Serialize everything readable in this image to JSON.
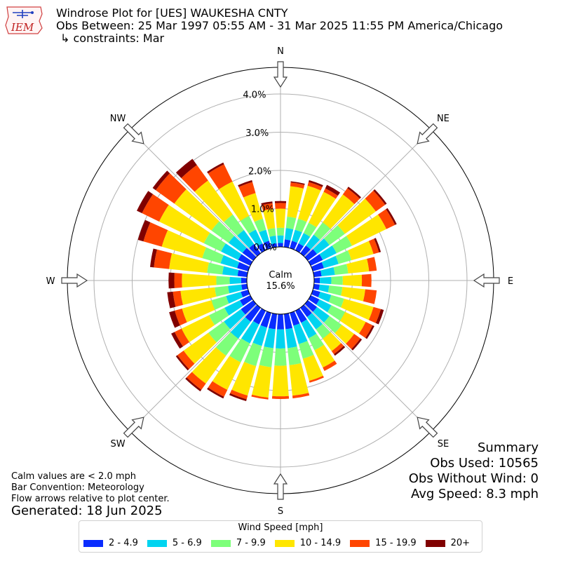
{
  "header": {
    "title": "Windrose Plot for [UES] WAUKESHA CNTY",
    "obs_between": "Obs Between: 25 Mar 1997 05:55 AM - 31 Mar 2025 11:55 PM America/Chicago",
    "constraints": "↳ constraints: Mar",
    "logo_text": "IEM"
  },
  "summary": {
    "heading": "Summary",
    "obs_used": "Obs Used: 10565",
    "obs_without_wind": "Obs Without Wind: 0",
    "avg_speed": "Avg Speed: 8.3 mph"
  },
  "notes": {
    "calm_note": "Calm values are < 2.0 mph",
    "bar_convention": "Bar Convention: Meteorology",
    "flow_arrows": "Flow arrows relative to plot center.",
    "generated": "Generated: 18 Jun 2025"
  },
  "legend": {
    "title": "Wind Speed [mph]"
  },
  "chart_data": {
    "type": "windrose",
    "calm_label": "Calm",
    "calm_percent_label": "15.6%",
    "calm_percent": 15.6,
    "radial_ticks": [
      0,
      1,
      2,
      3,
      4
    ],
    "radial_tick_labels": [
      "0.0%",
      "1.0%",
      "2.0%",
      "3.0%",
      "4.0%"
    ],
    "compass_labels": [
      "N",
      "NE",
      "E",
      "SE",
      "S",
      "SW",
      "W",
      "NW"
    ],
    "compass_angles": [
      0,
      45,
      90,
      135,
      180,
      225,
      270,
      315
    ],
    "bins": [
      {
        "label": "2 - 4.9",
        "color": "#0a2cff"
      },
      {
        "label": "5 - 6.9",
        "color": "#00d4f0"
      },
      {
        "label": "7 - 9.9",
        "color": "#7dff7a"
      },
      {
        "label": "10 - 14.9",
        "color": "#ffe600"
      },
      {
        "label": "15 - 19.9",
        "color": "#ff4500"
      },
      {
        "label": "20+",
        "color": "#800000"
      }
    ],
    "directions": [
      0,
      10,
      20,
      30,
      40,
      50,
      60,
      70,
      80,
      90,
      100,
      110,
      120,
      130,
      140,
      150,
      160,
      170,
      180,
      190,
      200,
      210,
      220,
      230,
      240,
      250,
      260,
      270,
      280,
      290,
      300,
      310,
      320,
      330,
      340,
      350
    ],
    "values": [
      [
        0.1,
        0.2,
        0.2,
        0.5,
        0.15,
        0.05
      ],
      [
        0.2,
        0.3,
        0.3,
        0.8,
        0.1,
        0.03
      ],
      [
        0.2,
        0.3,
        0.3,
        0.9,
        0.1,
        0.05
      ],
      [
        0.2,
        0.3,
        0.3,
        0.9,
        0.1,
        0.1
      ],
      [
        0.25,
        0.35,
        0.4,
        0.9,
        0.2,
        0.05
      ],
      [
        0.3,
        0.4,
        0.5,
        1.0,
        0.3,
        0.05
      ],
      [
        0.35,
        0.4,
        0.45,
        1.0,
        0.25,
        0.05
      ],
      [
        0.3,
        0.4,
        0.35,
        0.6,
        0.15,
        0.05
      ],
      [
        0.2,
        0.35,
        0.35,
        0.55,
        0.2,
        0.0
      ],
      [
        0.15,
        0.3,
        0.3,
        0.5,
        0.25,
        0.0
      ],
      [
        0.15,
        0.25,
        0.35,
        0.6,
        0.3,
        0.0
      ],
      [
        0.2,
        0.3,
        0.35,
        0.8,
        0.2,
        0.08
      ],
      [
        0.25,
        0.35,
        0.4,
        0.6,
        0.2,
        0.05
      ],
      [
        0.3,
        0.4,
        0.4,
        0.4,
        0.2,
        0.05
      ],
      [
        0.3,
        0.4,
        0.3,
        0.4,
        0.1,
        0.05
      ],
      [
        0.35,
        0.45,
        0.35,
        0.5,
        0.1,
        0.0
      ],
      [
        0.35,
        0.5,
        0.4,
        0.6,
        0.05,
        0.0
      ],
      [
        0.4,
        0.5,
        0.45,
        0.8,
        0.07,
        0.0
      ],
      [
        0.4,
        0.5,
        0.45,
        0.8,
        0.07,
        0.0
      ],
      [
        0.4,
        0.5,
        0.5,
        0.8,
        0.05,
        0.0
      ],
      [
        0.4,
        0.5,
        0.55,
        0.8,
        0.1,
        0.05
      ],
      [
        0.4,
        0.55,
        0.55,
        0.8,
        0.2,
        0.05
      ],
      [
        0.45,
        0.55,
        0.55,
        0.9,
        0.2,
        0.05
      ],
      [
        0.4,
        0.55,
        0.5,
        0.8,
        0.2,
        0.05
      ],
      [
        0.3,
        0.45,
        0.45,
        0.8,
        0.2,
        0.1
      ],
      [
        0.2,
        0.4,
        0.4,
        0.8,
        0.2,
        0.15
      ],
      [
        0.15,
        0.35,
        0.35,
        0.9,
        0.2,
        0.15
      ],
      [
        0.15,
        0.3,
        0.35,
        0.9,
        0.2,
        0.15
      ],
      [
        0.25,
        0.4,
        0.4,
        1.0,
        0.4,
        0.1
      ],
      [
        0.3,
        0.45,
        0.5,
        1.1,
        0.5,
        0.15
      ],
      [
        0.35,
        0.5,
        0.5,
        1.3,
        0.5,
        0.15
      ],
      [
        0.35,
        0.45,
        0.55,
        1.2,
        0.6,
        0.1
      ],
      [
        0.3,
        0.45,
        0.5,
        1.1,
        0.5,
        0.2
      ],
      [
        0.2,
        0.4,
        0.4,
        1.0,
        0.5,
        0.05
      ],
      [
        0.2,
        0.3,
        0.3,
        0.7,
        0.3,
        0.05
      ],
      [
        0.1,
        0.2,
        0.2,
        0.5,
        0.15,
        0.05
      ]
    ]
  }
}
